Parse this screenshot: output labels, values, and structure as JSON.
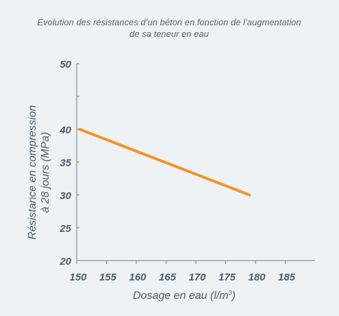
{
  "chart_data": {
    "type": "line",
    "title_line1": "Évolution des résistances d’un béton en fonction de  l’augmentation",
    "title_line2": "de sa teneur en eau",
    "xlabel": "Dosage en eau (l/m",
    "xlabel_sup": "3",
    "xlabel_end": ")",
    "ylabel_line1": "Résistance en compression",
    "ylabel_line2": "à 28 jours (MPa)",
    "xlim": [
      150,
      190
    ],
    "ylim": [
      20,
      50
    ],
    "x_ticks": [
      150,
      155,
      160,
      165,
      170,
      175,
      180,
      185
    ],
    "y_ticks": [
      20,
      25,
      30,
      35,
      40,
      45,
      50
    ],
    "y_tick_labels": [
      20,
      25,
      30,
      35,
      40,
      50
    ],
    "series": [
      {
        "x": [
          150.5,
          179
        ],
        "y": [
          40,
          30
        ],
        "color": "#f39325"
      }
    ],
    "axis_color": "#6f7c87",
    "grid": false
  }
}
